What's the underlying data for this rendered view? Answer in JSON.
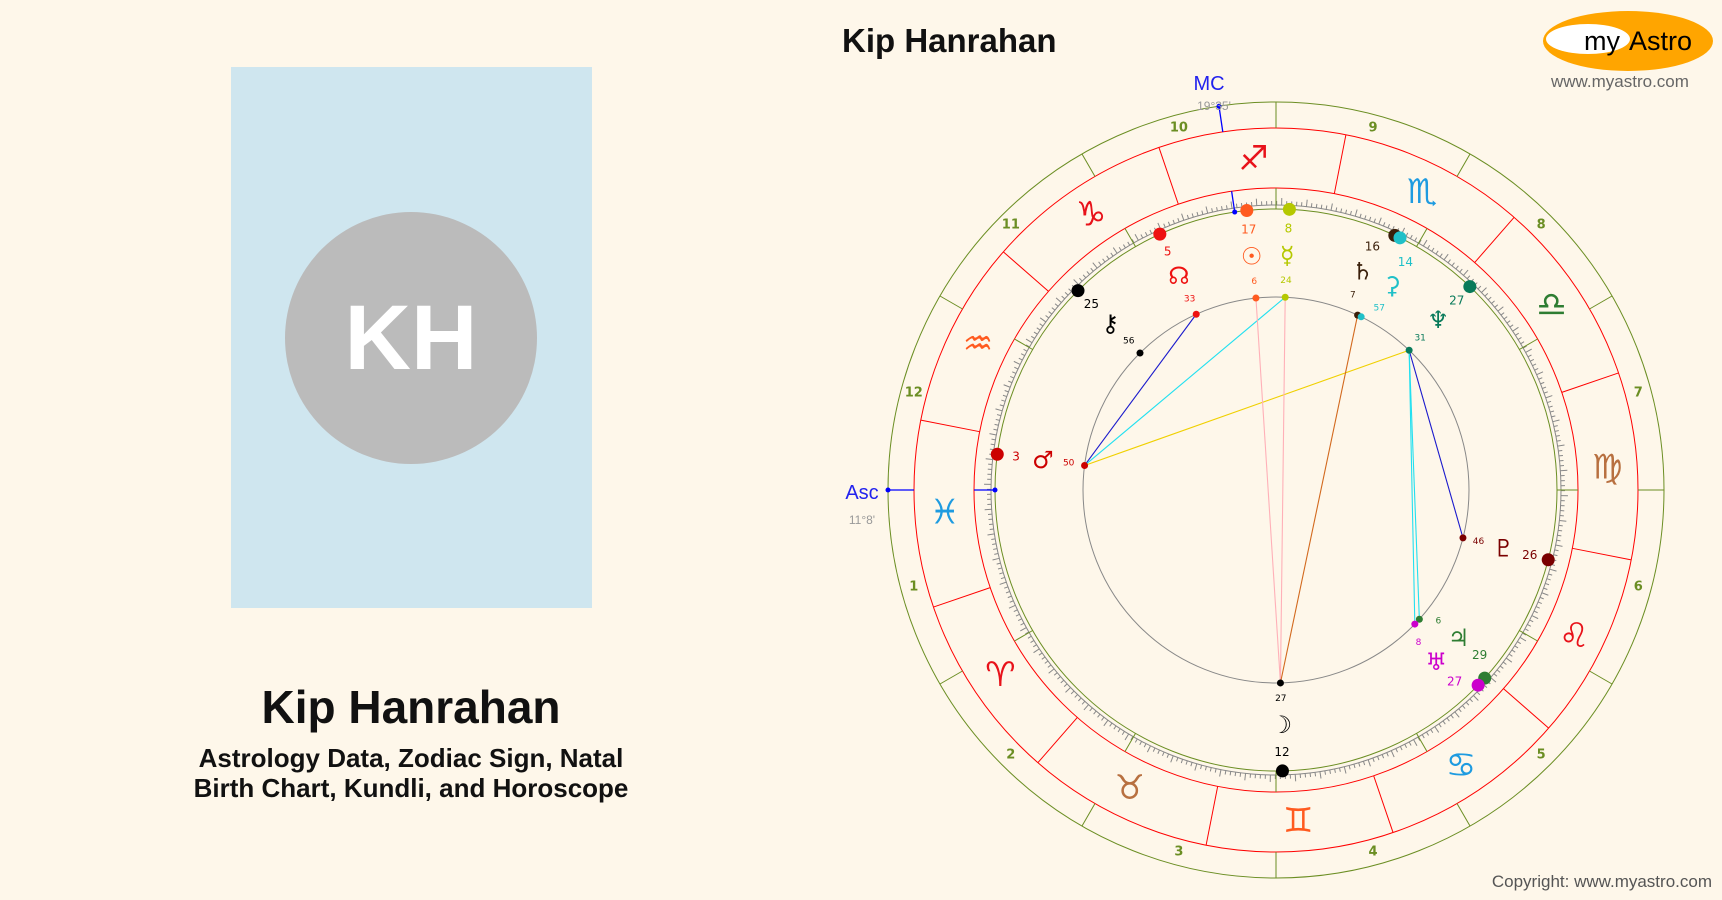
{
  "profile": {
    "initials": "KH",
    "name": "Kip Hanrahan",
    "subtitle_line1": "Astrology Data, Zodiac Sign, Natal",
    "subtitle_line2": "Birth Chart, Kundli, and Horoscope"
  },
  "chart_title": "Kip Hanrahan",
  "logo": {
    "text_my": "my",
    "text_astro": "Astro",
    "url": "www.myastro.com",
    "color": "#ffa500"
  },
  "copyright": "Copyright: www.myastro.com",
  "angles": {
    "asc": {
      "label": "Asc",
      "sign": 11,
      "deg": 11,
      "min": 8,
      "text": "11°8'"
    },
    "mc": {
      "label": "MC",
      "sign": 8,
      "deg": 19,
      "min": 35,
      "text": "19°35'"
    }
  },
  "houses": [
    "1",
    "2",
    "3",
    "4",
    "5",
    "6",
    "7",
    "8",
    "9",
    "10",
    "11",
    "12"
  ],
  "signs": [
    {
      "name": "aries",
      "glyph": "♈",
      "color": "#e8121a"
    },
    {
      "name": "taurus",
      "glyph": "♉",
      "color": "#b87040"
    },
    {
      "name": "gemini",
      "glyph": "♊",
      "color": "#ff5a1f"
    },
    {
      "name": "cancer",
      "glyph": "♋",
      "color": "#1e9be0"
    },
    {
      "name": "leo",
      "glyph": "♌",
      "color": "#e8121a"
    },
    {
      "name": "virgo",
      "glyph": "♍",
      "color": "#b87040"
    },
    {
      "name": "libra",
      "glyph": "♎",
      "color": "#2e7d32"
    },
    {
      "name": "scorpio",
      "glyph": "♏",
      "color": "#1e9be0"
    },
    {
      "name": "sagittarius",
      "glyph": "♐",
      "color": "#e8121a"
    },
    {
      "name": "capricorn",
      "glyph": "♑",
      "color": "#e8121a"
    },
    {
      "name": "aquarius",
      "glyph": "♒",
      "color": "#ff5a1f"
    },
    {
      "name": "pisces",
      "glyph": "♓",
      "color": "#1e9be0"
    }
  ],
  "planets": [
    {
      "name": "sun",
      "glyph": "☉",
      "sign": 8,
      "deg": 17,
      "min": 6,
      "color": "#ff5a1f"
    },
    {
      "name": "mercury",
      "glyph": "☿",
      "sign": 8,
      "deg": 8,
      "min": 24,
      "color": "#b5c800"
    },
    {
      "name": "north-node",
      "glyph": "☊",
      "sign": 9,
      "deg": 5,
      "min": 33,
      "color": "#ee1111"
    },
    {
      "name": "chiron",
      "glyph": "⚷",
      "sign": 9,
      "deg": 25,
      "min": 56,
      "color": "#000000"
    },
    {
      "name": "saturn",
      "glyph": "♄",
      "sign": 7,
      "deg": 16,
      "min": 7,
      "color": "#3a1f0a"
    },
    {
      "name": "ceres",
      "glyph": "⚳",
      "sign": 7,
      "deg": 14,
      "min": 57,
      "color": "#20c0c8"
    },
    {
      "name": "neptune",
      "glyph": "♆",
      "sign": 6,
      "deg": 27,
      "min": 31,
      "color": "#087a5a"
    },
    {
      "name": "pluto",
      "glyph": "♇",
      "sign": 4,
      "deg": 26,
      "min": 46,
      "color": "#7a0000"
    },
    {
      "name": "jupiter",
      "glyph": "♃",
      "sign": 3,
      "deg": 29,
      "min": 6,
      "color": "#2e7d32"
    },
    {
      "name": "uranus",
      "glyph": "♅",
      "sign": 3,
      "deg": 27,
      "min": 8,
      "color": "#cc00cc"
    },
    {
      "name": "mars",
      "glyph": "♂",
      "sign": 11,
      "deg": 3,
      "min": 50,
      "color": "#cc0000"
    },
    {
      "name": "moon",
      "glyph": "☽",
      "sign": 2,
      "deg": 12,
      "min": 27,
      "color": "#000000"
    }
  ],
  "aspects": [
    {
      "a": "mars",
      "b": "north-node",
      "color": "#1a1acc"
    },
    {
      "a": "mars",
      "b": "mercury",
      "color": "#22e0f0"
    },
    {
      "a": "mars",
      "b": "neptune",
      "color": "#f0d000"
    },
    {
      "a": "sun",
      "b": "moon",
      "color": "#ffb0b8"
    },
    {
      "a": "mercury",
      "b": "moon",
      "color": "#ffb0b8"
    },
    {
      "a": "saturn",
      "b": "moon",
      "color": "#d2691e"
    },
    {
      "a": "neptune",
      "b": "pluto",
      "color": "#1a1acc"
    },
    {
      "a": "neptune",
      "b": "uranus",
      "color": "#22e0f0"
    },
    {
      "a": "neptune",
      "b": "jupiter",
      "color": "#22e0f0"
    }
  ],
  "colors": {
    "ring_outer": "#6b8e23",
    "ring_zodiac": "#ff0000",
    "angle_line": "#0000ff",
    "ticks": "#888888",
    "background": "#fef7ea"
  }
}
